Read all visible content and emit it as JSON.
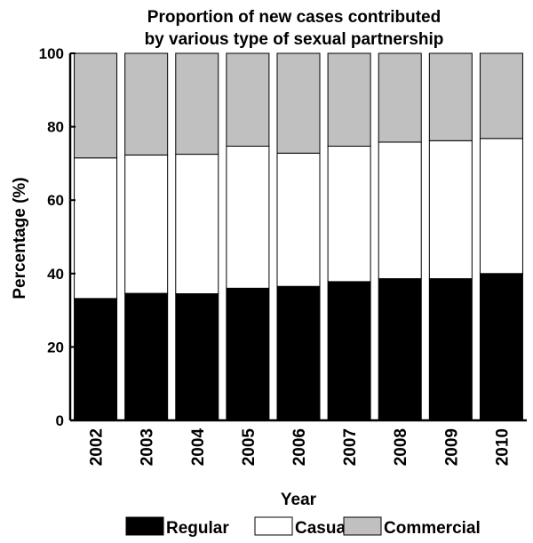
{
  "chart_data": {
    "type": "bar",
    "stacked": true,
    "title": [
      "Proportion of new cases contributed",
      "by various type of sexual partnership"
    ],
    "xlabel": "Year",
    "ylabel": "Percentage (%)",
    "ylim": [
      0,
      100
    ],
    "yticks": [
      0,
      20,
      40,
      60,
      80,
      100
    ],
    "categories": [
      "2002",
      "2003",
      "2004",
      "2005",
      "2006",
      "2007",
      "2008",
      "2009",
      "2010"
    ],
    "series": [
      {
        "name": "Regular",
        "color": "#000000",
        "values": [
          33.2,
          34.6,
          34.5,
          36.0,
          36.5,
          37.8,
          38.6,
          38.6,
          40.0
        ]
      },
      {
        "name": "Casual",
        "color": "#ffffff",
        "values": [
          38.3,
          37.7,
          38.0,
          38.7,
          36.3,
          36.9,
          37.2,
          37.6,
          36.8
        ]
      },
      {
        "name": "Commercial",
        "color": "#c0c0c0",
        "values": [
          28.5,
          27.7,
          27.5,
          25.3,
          27.2,
          25.3,
          24.2,
          23.8,
          23.2
        ]
      }
    ],
    "grid": false,
    "legend_position": "bottom"
  }
}
